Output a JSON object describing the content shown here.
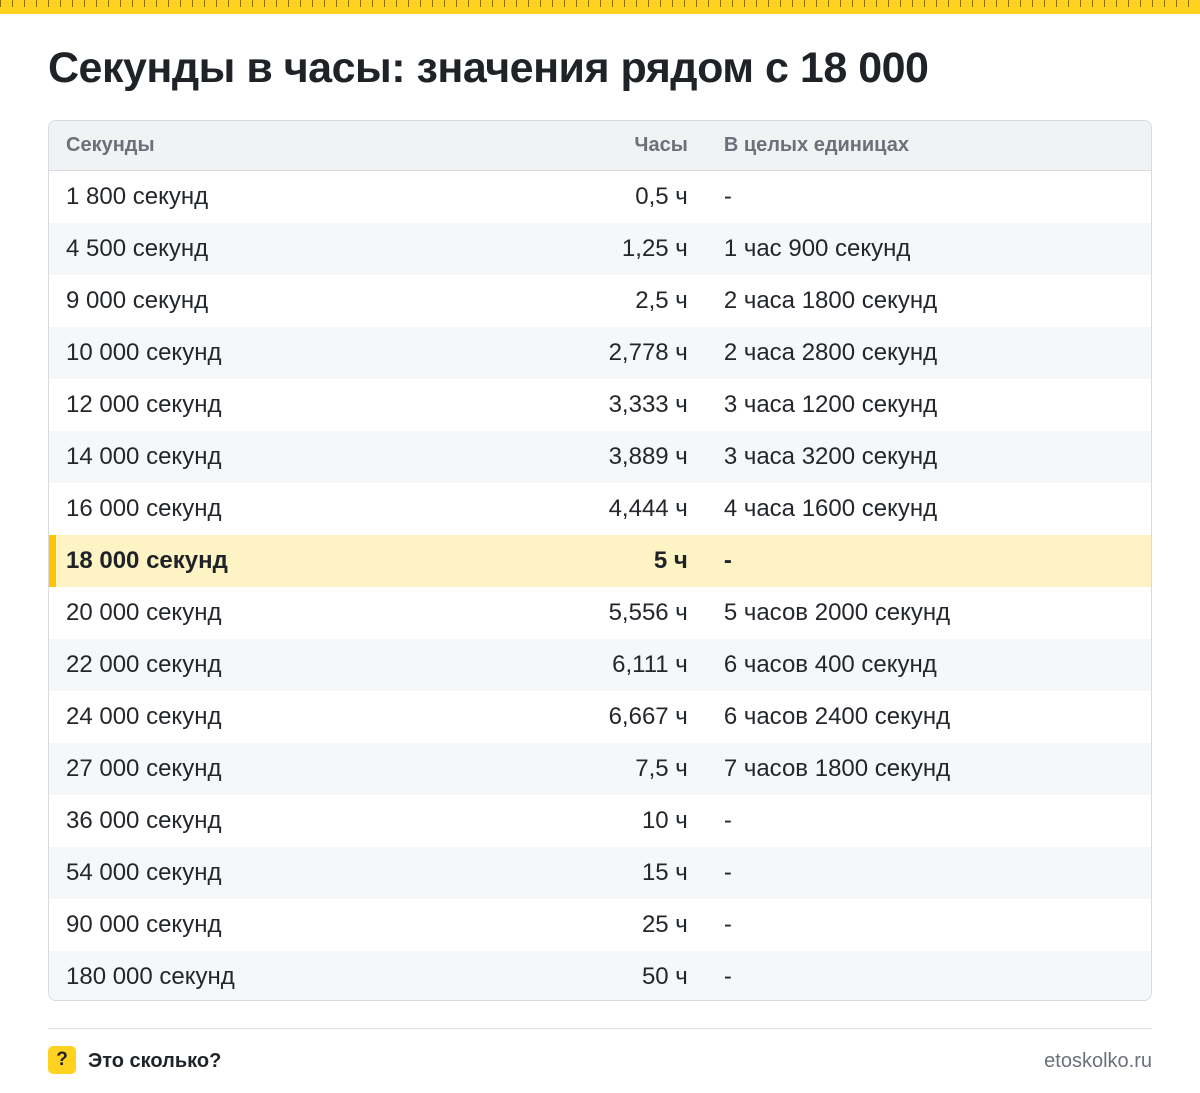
{
  "title": "Секунды в часы: значения рядом с 18 000",
  "table": {
    "headers": [
      "Секунды",
      "Часы",
      "В целых единицах"
    ],
    "rows": [
      {
        "seconds": "1 800 секунд",
        "hours": "0,5 ч",
        "whole": "-"
      },
      {
        "seconds": "4 500 секунд",
        "hours": "1,25 ч",
        "whole": "1 час 900 секунд"
      },
      {
        "seconds": "9 000 секунд",
        "hours": "2,5 ч",
        "whole": "2 часа 1800 секунд"
      },
      {
        "seconds": "10 000 секунд",
        "hours": "2,778 ч",
        "whole": "2 часа 2800 секунд"
      },
      {
        "seconds": "12 000 секунд",
        "hours": "3,333 ч",
        "whole": "3 часа 1200 секунд"
      },
      {
        "seconds": "14 000 секунд",
        "hours": "3,889 ч",
        "whole": "3 часа 3200 секунд"
      },
      {
        "seconds": "16 000 секунд",
        "hours": "4,444 ч",
        "whole": "4 часа 1600 секунд"
      },
      {
        "seconds": "18 000 секунд",
        "hours": "5 ч",
        "whole": "-",
        "highlight": true
      },
      {
        "seconds": "20 000 секунд",
        "hours": "5,556 ч",
        "whole": "5 часов 2000 секунд"
      },
      {
        "seconds": "22 000 секунд",
        "hours": "6,111 ч",
        "whole": "6 часов 400 секунд"
      },
      {
        "seconds": "24 000 секунд",
        "hours": "6,667 ч",
        "whole": "6 часов 2400 секунд"
      },
      {
        "seconds": "27 000 секунд",
        "hours": "7,5 ч",
        "whole": "7 часов 1800 секунд"
      },
      {
        "seconds": "36 000 секунд",
        "hours": "10 ч",
        "whole": "-"
      },
      {
        "seconds": "54 000 секунд",
        "hours": "15 ч",
        "whole": "-"
      },
      {
        "seconds": "90 000 секунд",
        "hours": "25 ч",
        "whole": "-"
      },
      {
        "seconds": "180 000 секунд",
        "hours": "50 ч",
        "whole": "-"
      }
    ]
  },
  "footer": {
    "badge": "?",
    "brand": "Это сколько?",
    "site": "etoskolko.ru"
  },
  "colors": {
    "accent": "#ffd21f",
    "highlight_bg": "#fdf3c4",
    "highlight_bar": "#ffc600"
  }
}
